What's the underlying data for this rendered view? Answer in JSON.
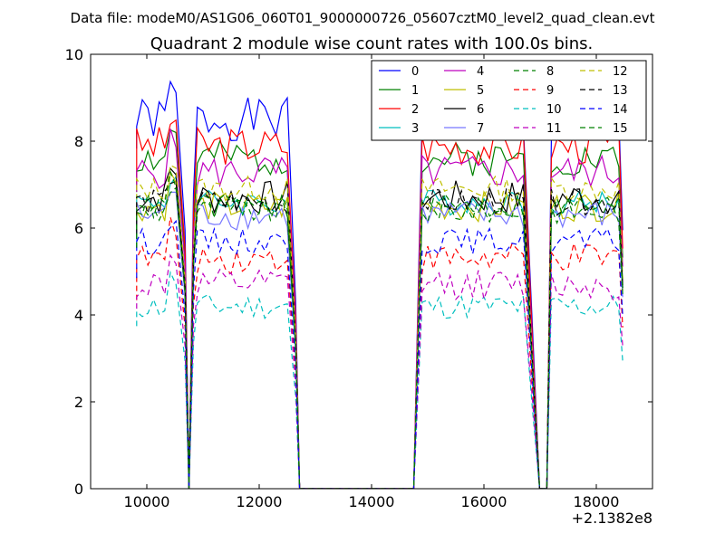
{
  "header": {
    "data_file": "Data file: modeM0/AS1G06_060T01_9000000726_05607cztM0_level2_quad_clean.evt"
  },
  "chart_data": {
    "type": "line",
    "title": "Quadrant 2 module wise count rates with 100.0s bins.",
    "xlabel": "",
    "ylabel": "",
    "xlim": [
      9000,
      19000
    ],
    "ylim": [
      0,
      10
    ],
    "x_ticks": [
      {
        "value": 10000,
        "label": "10000"
      },
      {
        "value": 12000,
        "label": "12000"
      },
      {
        "value": 14000,
        "label": "14000"
      },
      {
        "value": 16000,
        "label": "16000"
      },
      {
        "value": 18000,
        "label": "18000"
      }
    ],
    "y_ticks": [
      {
        "value": 0,
        "label": "0"
      },
      {
        "value": 2,
        "label": "2"
      },
      {
        "value": 4,
        "label": "4"
      },
      {
        "value": 6,
        "label": "6"
      },
      {
        "value": 8,
        "label": "8"
      },
      {
        "value": 10,
        "label": "10"
      }
    ],
    "x_offset_label": "+2.1382e8",
    "legend_location": "upper right",
    "series": [
      {
        "name": "0",
        "color": "#0000ff",
        "dash": "solid",
        "base": 8.5,
        "amp": 0.5,
        "seed": 1
      },
      {
        "name": "1",
        "color": "#008000",
        "dash": "solid",
        "base": 7.6,
        "amp": 0.4,
        "seed": 2
      },
      {
        "name": "2",
        "color": "#ff0000",
        "dash": "solid",
        "base": 7.9,
        "amp": 0.45,
        "seed": 3
      },
      {
        "name": "3",
        "color": "#00bfbf",
        "dash": "solid",
        "base": 6.6,
        "amp": 0.3,
        "seed": 4
      },
      {
        "name": "4",
        "color": "#bf00bf",
        "dash": "solid",
        "base": 7.3,
        "amp": 0.4,
        "seed": 5
      },
      {
        "name": "5",
        "color": "#bfbf00",
        "dash": "solid",
        "base": 6.5,
        "amp": 0.35,
        "seed": 6
      },
      {
        "name": "6",
        "color": "#000000",
        "dash": "solid",
        "base": 6.7,
        "amp": 0.4,
        "seed": 7
      },
      {
        "name": "7",
        "color": "#7777ff",
        "dash": "solid",
        "base": 6.3,
        "amp": 0.35,
        "seed": 8
      },
      {
        "name": "8",
        "color": "#008000",
        "dash": "dashed",
        "base": 6.4,
        "amp": 0.3,
        "seed": 9
      },
      {
        "name": "9",
        "color": "#ff0000",
        "dash": "dashed",
        "base": 5.3,
        "amp": 0.35,
        "seed": 10
      },
      {
        "name": "10",
        "color": "#00bfbf",
        "dash": "dashed",
        "base": 4.2,
        "amp": 0.3,
        "seed": 11
      },
      {
        "name": "11",
        "color": "#bf00bf",
        "dash": "dashed",
        "base": 4.7,
        "amp": 0.35,
        "seed": 12
      },
      {
        "name": "12",
        "color": "#bfbf00",
        "dash": "dashed",
        "base": 6.9,
        "amp": 0.3,
        "seed": 13
      },
      {
        "name": "13",
        "color": "#000000",
        "dash": "dashed",
        "base": 6.6,
        "amp": 0.3,
        "seed": 14
      },
      {
        "name": "14",
        "color": "#0000ff",
        "dash": "dashed",
        "base": 5.7,
        "amp": 0.3,
        "seed": 15
      },
      {
        "name": "15",
        "color": "#008000",
        "dash": "dashed",
        "base": 6.5,
        "amp": 0.3,
        "seed": 16
      }
    ],
    "segments": [
      {
        "start": 9820,
        "end": 10570
      },
      {
        "start": 10900,
        "end": 12570
      },
      {
        "start": 14900,
        "end": 16770
      },
      {
        "start": 17200,
        "end": 18470
      }
    ],
    "drops": [
      {
        "x": 10680,
        "y": 6.0
      },
      {
        "x": 10750,
        "y": 0.0
      },
      {
        "x": 12650,
        "y": 3.0
      },
      {
        "x": 12720,
        "y": 0.0
      },
      {
        "x": 14750,
        "y": 0.0
      },
      {
        "x": 16860,
        "y": 3.0
      },
      {
        "x": 16990,
        "y": 0.0
      },
      {
        "x": 17120,
        "y": 0.0
      }
    ]
  }
}
